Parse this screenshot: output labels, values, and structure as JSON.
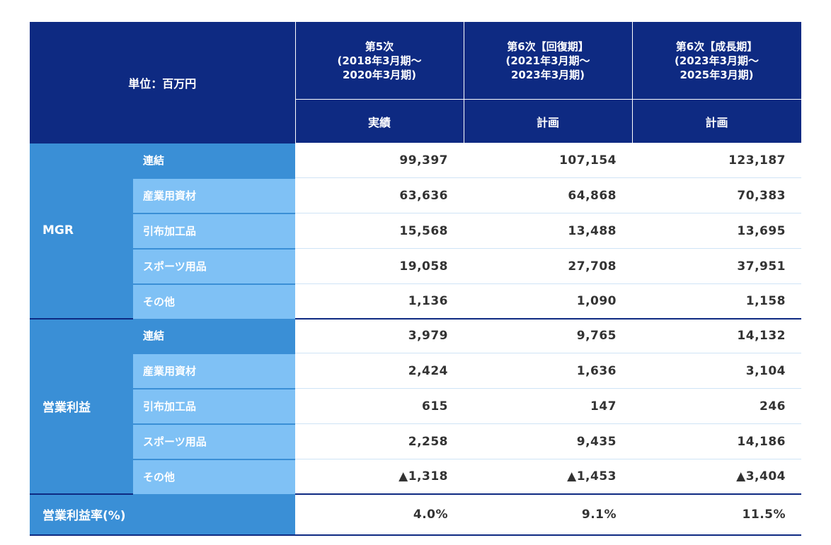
{
  "header": {
    "unit_label": "単位：百万円",
    "columns": [
      {
        "line1": "第5次",
        "line2": "(2018年3月期〜",
        "line3": "2020年3月期)",
        "type": "実績"
      },
      {
        "line1": "第6次【回復期】",
        "line2": "(2021年3月期〜",
        "line3": "2023年3月期)",
        "type": "計画"
      },
      {
        "line1": "第6次【成長期】",
        "line2": "(2023年3月期〜",
        "line3": "2025年3月期)",
        "type": "計画"
      }
    ]
  },
  "groups": [
    {
      "label": "MGR",
      "rows": [
        {
          "label": "連結",
          "values": [
            "99,397",
            "107,154",
            "123,187"
          ]
        },
        {
          "label": "産業用資材",
          "values": [
            "63,636",
            "64,868",
            "70,383"
          ]
        },
        {
          "label": "引布加工品",
          "values": [
            "15,568",
            "13,488",
            "13,695"
          ]
        },
        {
          "label": "スポーツ用品",
          "values": [
            "19,058",
            "27,708",
            "37,951"
          ]
        },
        {
          "label": "その他",
          "values": [
            "1,136",
            "1,090",
            "1,158"
          ]
        }
      ]
    },
    {
      "label": "営業利益",
      "rows": [
        {
          "label": "連結",
          "values": [
            "3,979",
            "9,765",
            "14,132"
          ]
        },
        {
          "label": "産業用資材",
          "values": [
            "2,424",
            "1,636",
            "3,104"
          ]
        },
        {
          "label": "引布加工品",
          "values": [
            "615",
            "147",
            "246"
          ]
        },
        {
          "label": "スポーツ用品",
          "values": [
            "2,258",
            "9,435",
            "14,186"
          ]
        },
        {
          "label": "その他",
          "values": [
            "▲1,318",
            "▲1,453",
            "▲3,404"
          ]
        }
      ]
    }
  ],
  "rate_row": {
    "label": "営業利益率(%)",
    "values": [
      "4.0%",
      "9.1%",
      "11.5%"
    ]
  }
}
